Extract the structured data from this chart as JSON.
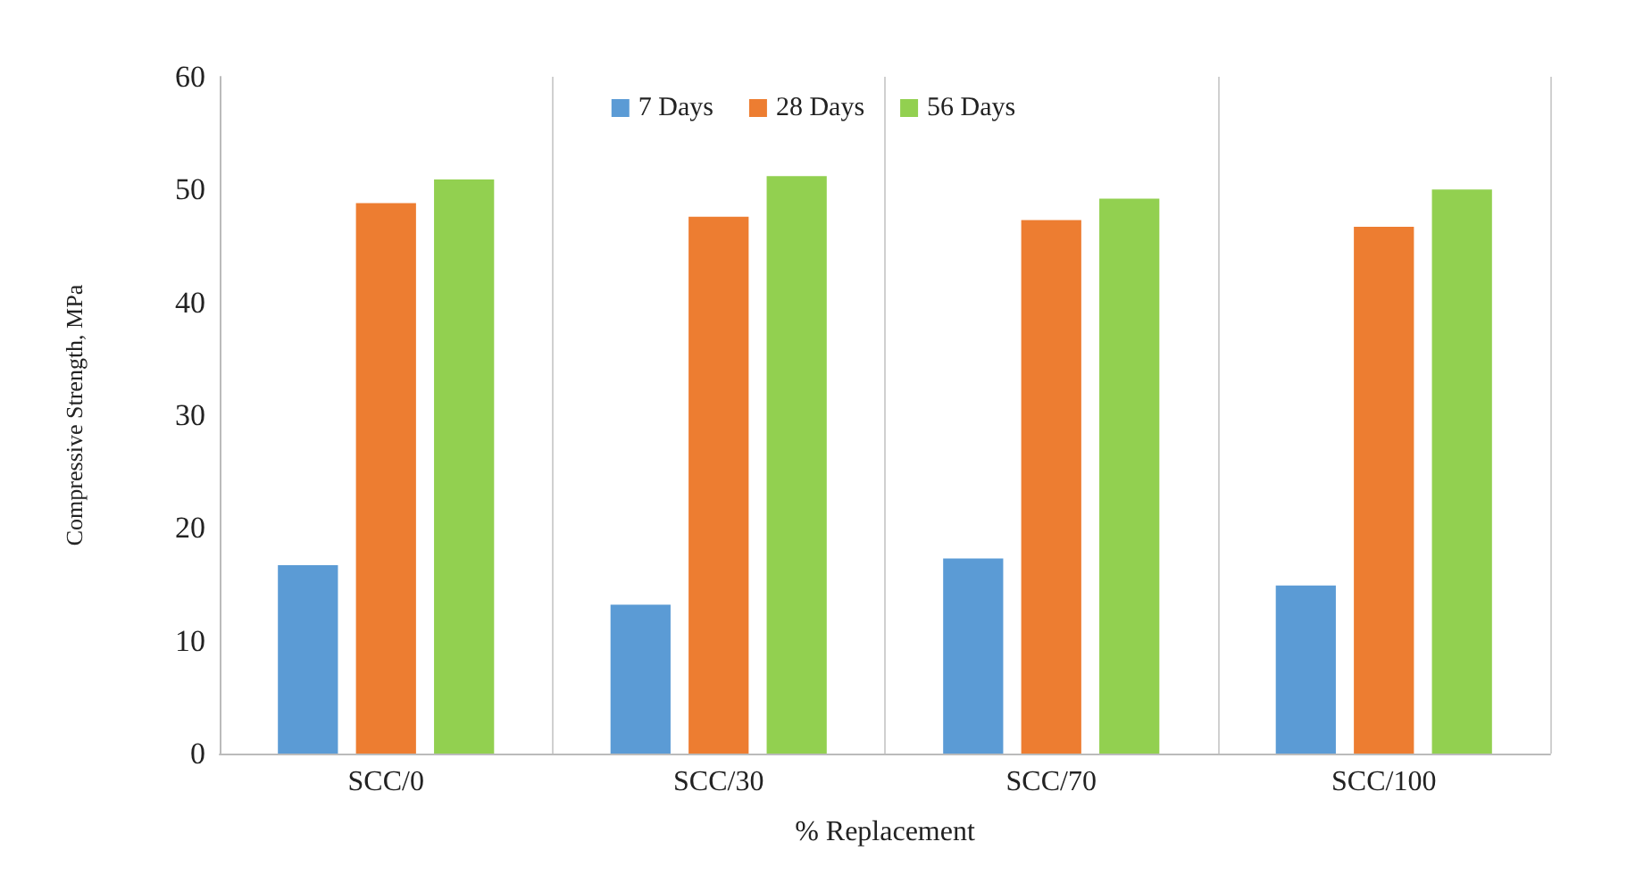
{
  "chart_data": {
    "type": "bar",
    "xlabel": "% Replacement",
    "ylabel": "Compressive Strength, MPa",
    "categories": [
      "SCC/0",
      "SCC/30",
      "SCC/70",
      "SCC/100"
    ],
    "series": [
      {
        "name": "7 Days",
        "color": "#5b9bd5",
        "values": [
          16.7,
          13.2,
          17.3,
          14.9
        ]
      },
      {
        "name": "28 Days",
        "color": "#ed7d31",
        "values": [
          48.8,
          47.6,
          47.3,
          46.7
        ]
      },
      {
        "name": "56 Days",
        "color": "#92d050",
        "values": [
          50.9,
          51.2,
          49.2,
          50.0
        ]
      }
    ],
    "ylim": [
      0,
      60
    ],
    "yticks": [
      0,
      10,
      20,
      30,
      40,
      50,
      60
    ],
    "grid": "x",
    "legend": "top"
  }
}
